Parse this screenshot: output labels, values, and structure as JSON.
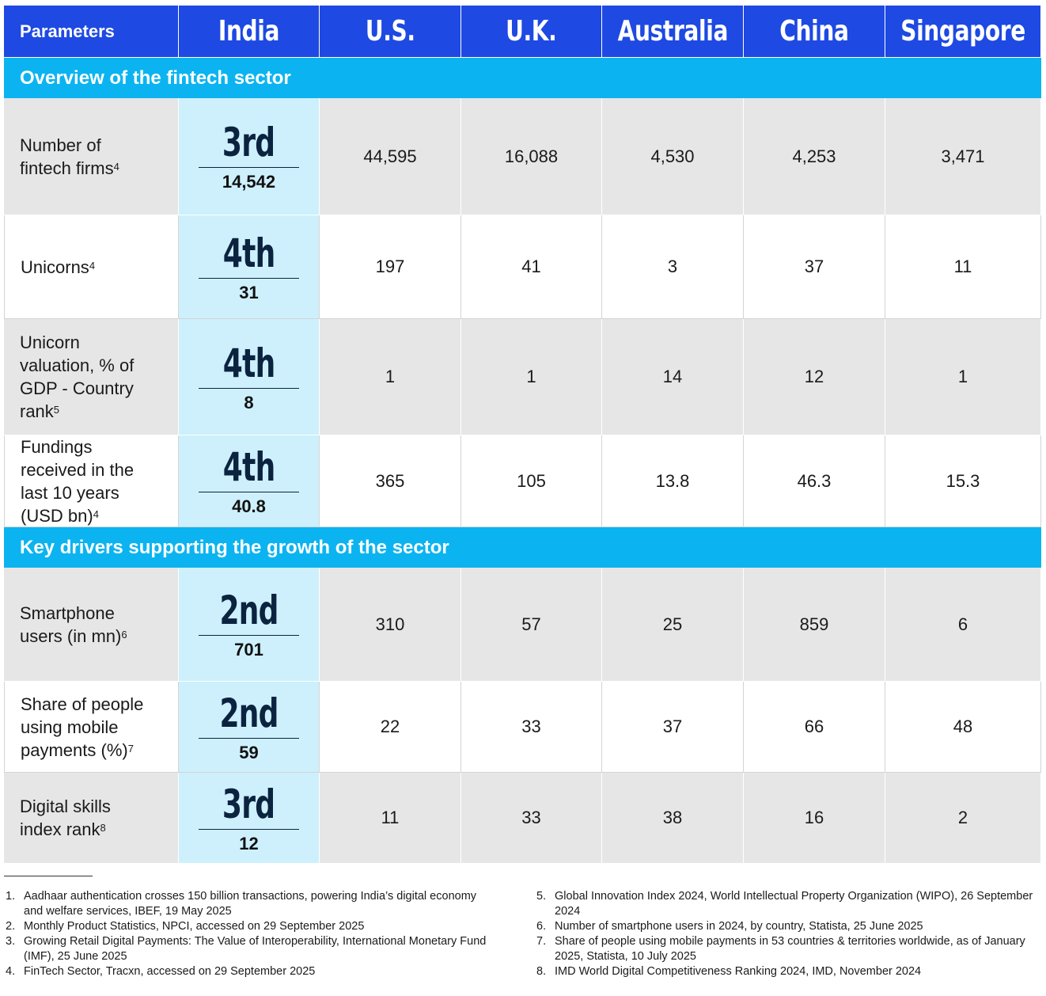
{
  "header": {
    "parameters": "Parameters",
    "countries": [
      "India",
      "U.S.",
      "U.K.",
      "Australia",
      "China",
      "Singapore"
    ]
  },
  "sections": [
    {
      "title": "Overview of the fintech sector"
    },
    {
      "title": "Key drivers supporting the growth of the sector"
    }
  ],
  "rows": [
    {
      "label_lines": [
        "Number of",
        "fintech firms"
      ],
      "sup": "4",
      "india_rank": "3rd",
      "india_value": "14,542",
      "values": [
        "44,595",
        "16,088",
        "4,530",
        "4,253",
        "3,471"
      ]
    },
    {
      "label_lines": [
        "Unicorns"
      ],
      "sup": "4",
      "india_rank": "4th",
      "india_value": "31",
      "values": [
        "197",
        "41",
        "3",
        "37",
        "11"
      ]
    },
    {
      "label_lines": [
        "Unicorn",
        "valuation, % of",
        "GDP - Country",
        "rank"
      ],
      "sup": "5",
      "india_rank": "4th",
      "india_value": "8",
      "values": [
        "1",
        "1",
        "14",
        "12",
        "1"
      ]
    },
    {
      "label_lines": [
        "Fundings",
        "received in the",
        "last 10 years",
        "(USD bn)"
      ],
      "sup": "4",
      "india_rank": "4th",
      "india_value": "40.8",
      "values": [
        "365",
        "105",
        "13.8",
        "46.3",
        "15.3"
      ]
    },
    {
      "label_lines": [
        "Smartphone",
        "users (in mn)"
      ],
      "sup": "6",
      "india_rank": "2nd",
      "india_value": "701",
      "values": [
        "310",
        "57",
        "25",
        "859",
        "6"
      ]
    },
    {
      "label_lines": [
        "Share of people",
        "using mobile",
        "payments (%)"
      ],
      "sup": "7",
      "india_rank": "2nd",
      "india_value": "59",
      "values": [
        "22",
        "33",
        "37",
        "66",
        "48"
      ]
    },
    {
      "label_lines": [
        "Digital skills",
        "index rank"
      ],
      "sup": "8",
      "india_rank": "3rd",
      "india_value": "12",
      "values": [
        "11",
        "33",
        "38",
        "16",
        "2"
      ]
    }
  ],
  "footnotes": [
    {
      "num": "1.",
      "text": "Aadhaar authentication crosses 150 billion transactions, powering India’s digital economy and welfare services, IBEF, 19 May 2025"
    },
    {
      "num": "2.",
      "text": "Monthly Product Statistics, NPCI, accessed on 29 September 2025"
    },
    {
      "num": "3.",
      "text": "Growing Retail Digital Payments: The Value of Interoperability, International Monetary Fund (IMF), 25 June 2025"
    },
    {
      "num": "4.",
      "text": "FinTech Sector, Tracxn, accessed on 29 September 2025"
    },
    {
      "num": "5.",
      "text": "Global Innovation Index 2024, World Intellectual Property Organization (WIPO), 26 September 2024"
    },
    {
      "num": "6.",
      "text": "Number of smartphone users in 2024, by country, Statista, 25 June 2025"
    },
    {
      "num": "7.",
      "text": "Share of people using mobile payments in 53 countries & territories worldwide, as of January 2025, Statista, 10 July 2025"
    },
    {
      "num": "8.",
      "text": "IMD World Digital Competitiveness Ranking 2024, IMD, November 2024"
    }
  ]
}
